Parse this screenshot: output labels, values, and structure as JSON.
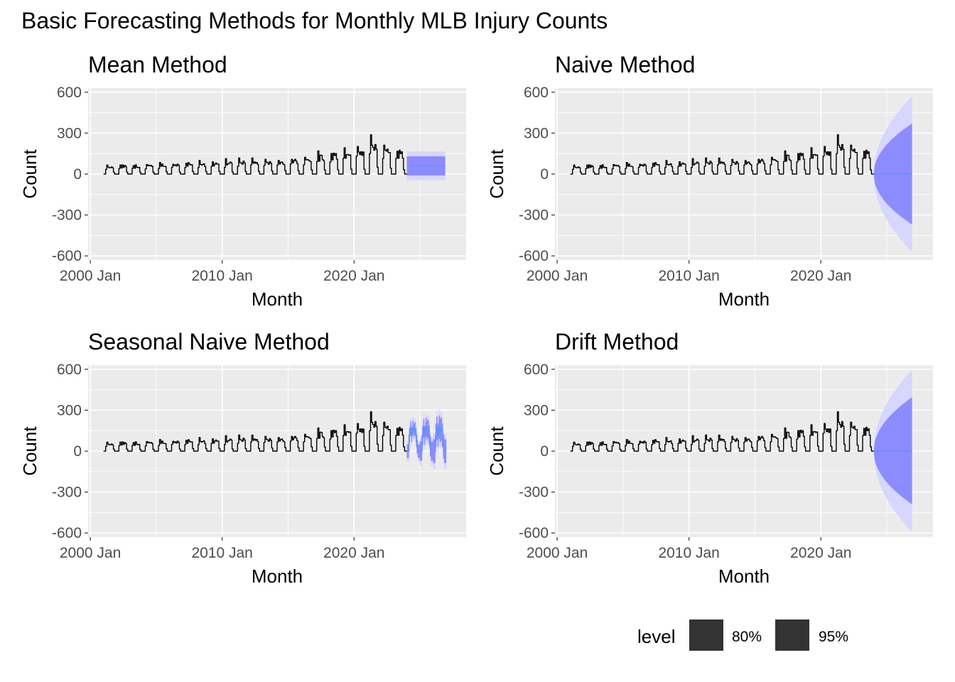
{
  "title": "Basic Forecasting Methods for Monthly MLB Injury Counts",
  "colors": {
    "panel_bg": "#EBEBEB",
    "grid": "#FFFFFF",
    "series": "#000000",
    "forecast_line": "#6495ED",
    "band_80": "#8C8CFF",
    "band_95": "#D6D6FF",
    "legend_key": "#333333"
  },
  "legend": {
    "title": "level",
    "items": [
      {
        "label": "80%"
      },
      {
        "label": "95%"
      }
    ],
    "position": "bottom-right"
  },
  "chart_data": [
    {
      "type": "line",
      "title": "Mean Method",
      "xlabel": "Month",
      "ylabel": "Count",
      "ylim": [
        -630,
        630
      ],
      "xlim": [
        "1999-11",
        "2028-07"
      ],
      "yticks": [
        600,
        300,
        0,
        -300,
        -600
      ],
      "ytick_labels": [
        "600",
        "300",
        "0",
        "-300",
        "-600"
      ],
      "xticks": [
        "2000-01",
        "2010-01",
        "2020-01"
      ],
      "xtick_labels": [
        "2000 Jan",
        "2010 Jan",
        "2020 Jan"
      ],
      "grid": true,
      "history": {
        "start": "2001-01",
        "end": "2023-12",
        "description_peaks": "seasonal, ~60-100 early years rising to ~270 around 2021"
      },
      "forecast": {
        "method": "mean",
        "start": "2024-01",
        "end": "2026-12",
        "point": 58,
        "lo80": -10,
        "hi80": 130,
        "lo95": -45,
        "hi95": 165
      }
    },
    {
      "type": "line",
      "title": "Naive Method",
      "xlabel": "Month",
      "ylabel": "Count",
      "ylim": [
        -630,
        630
      ],
      "xlim": [
        "1999-11",
        "2028-07"
      ],
      "yticks": [
        600,
        300,
        0,
        -300,
        -600
      ],
      "ytick_labels": [
        "600",
        "300",
        "0",
        "-300",
        "-600"
      ],
      "xticks": [
        "2000-01",
        "2010-01",
        "2020-01"
      ],
      "xtick_labels": [
        "2000 Jan",
        "2010 Jan",
        "2020 Jan"
      ],
      "grid": true,
      "forecast": {
        "method": "naive",
        "start": "2024-01",
        "end": "2026-12",
        "point": 0,
        "hi80_end": 370,
        "lo80_end": -370,
        "hi95_end": 570,
        "lo95_end": -570
      }
    },
    {
      "type": "line",
      "title": "Seasonal Naive Method",
      "xlabel": "Month",
      "ylabel": "Count",
      "ylim": [
        -630,
        630
      ],
      "xlim": [
        "1999-11",
        "2028-07"
      ],
      "yticks": [
        600,
        300,
        0,
        -300,
        -600
      ],
      "ytick_labels": [
        "600",
        "300",
        "0",
        "-300",
        "-600"
      ],
      "xticks": [
        "2000-01",
        "2010-01",
        "2020-01"
      ],
      "xtick_labels": [
        "2000 Jan",
        "2010 Jan",
        "2020 Jan"
      ],
      "grid": true,
      "forecast": {
        "method": "seasonal naive",
        "start": "2024-01",
        "end": "2026-12",
        "season_peak": 190,
        "band80_width_year1": 50,
        "band95_width_year1": 75
      }
    },
    {
      "type": "line",
      "title": "Drift Method",
      "xlabel": "Month",
      "ylabel": "Count",
      "ylim": [
        -630,
        630
      ],
      "xlim": [
        "1999-11",
        "2028-07"
      ],
      "yticks": [
        600,
        300,
        0,
        -300,
        -600
      ],
      "ytick_labels": [
        "600",
        "300",
        "0",
        "-300",
        "-600"
      ],
      "xticks": [
        "2000-01",
        "2010-01",
        "2020-01"
      ],
      "xtick_labels": [
        "2000 Jan",
        "2010 Jan",
        "2020 Jan"
      ],
      "grid": true,
      "forecast": {
        "method": "drift",
        "start": "2024-01",
        "end": "2026-12",
        "point": 0,
        "hi80_end": 395,
        "lo80_end": -390,
        "hi95_end": 595,
        "lo95_end": -595
      }
    }
  ]
}
